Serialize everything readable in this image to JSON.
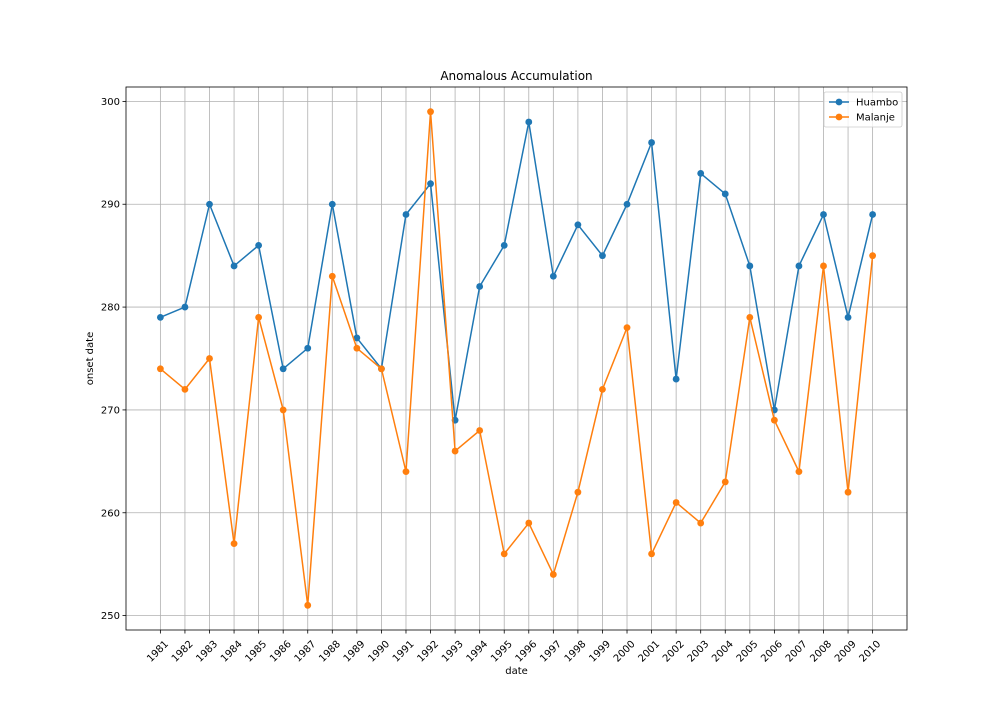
{
  "chart_data": {
    "type": "line",
    "title": "Anomalous Accumulation",
    "xlabel": "date",
    "ylabel": "onset date",
    "x": [
      "1981",
      "1982",
      "1983",
      "1984",
      "1985",
      "1986",
      "1987",
      "1988",
      "1989",
      "1990",
      "1991",
      "1992",
      "1993",
      "1994",
      "1995",
      "1996",
      "1997",
      "1998",
      "1999",
      "2000",
      "2001",
      "2002",
      "2003",
      "2004",
      "2005",
      "2006",
      "2007",
      "2008",
      "2009",
      "2010"
    ],
    "ylim": [
      248.6,
      301.4
    ],
    "yticks": [
      250,
      260,
      270,
      280,
      290,
      300
    ],
    "grid": true,
    "legend_position": "top-right",
    "series": [
      {
        "name": "Huambo",
        "color": "#1f77b4",
        "values": [
          279,
          280,
          290,
          284,
          286,
          274,
          276,
          290,
          277,
          274,
          289,
          292,
          269,
          282,
          286,
          298,
          283,
          288,
          285,
          290,
          296,
          273,
          293,
          291,
          284,
          270,
          284,
          289,
          279,
          289
        ]
      },
      {
        "name": "Malanje",
        "color": "#ff7f0e",
        "values": [
          274,
          272,
          275,
          257,
          279,
          270,
          251,
          283,
          276,
          274,
          264,
          299,
          266,
          268,
          256,
          259,
          254,
          262,
          272,
          278,
          256,
          261,
          259,
          263,
          279,
          269,
          264,
          284,
          262,
          285
        ]
      }
    ]
  }
}
